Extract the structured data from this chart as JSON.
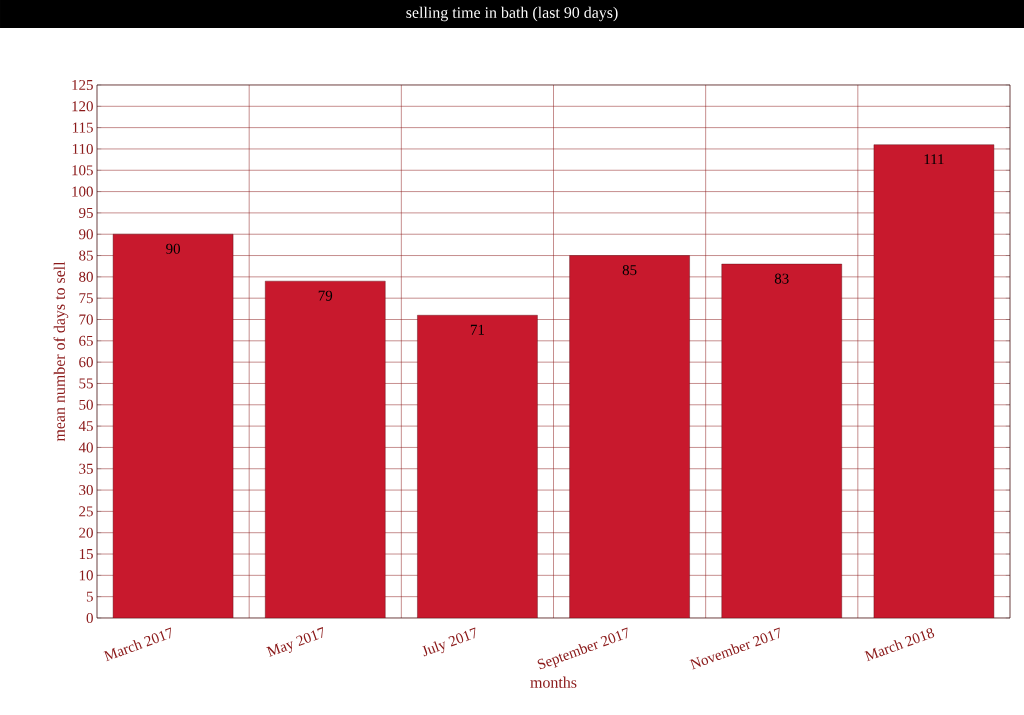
{
  "chart_data": {
    "type": "bar",
    "title": "selling time in bath (last 90 days)",
    "xlabel": "months",
    "ylabel": "mean number of days to sell",
    "categories": [
      "March 2017",
      "May 2017",
      "July 2017",
      "September 2017",
      "November 2017",
      "March 2018"
    ],
    "values": [
      90,
      79,
      71,
      85,
      83,
      111
    ],
    "color": "#c8192d",
    "ylim": [
      0,
      125
    ],
    "yticks": [
      0,
      5,
      10,
      15,
      20,
      25,
      30,
      35,
      40,
      45,
      50,
      55,
      60,
      65,
      70,
      75,
      80,
      85,
      90,
      95,
      100,
      105,
      110,
      115,
      120,
      125
    ],
    "grid": true,
    "data_labels": true
  }
}
